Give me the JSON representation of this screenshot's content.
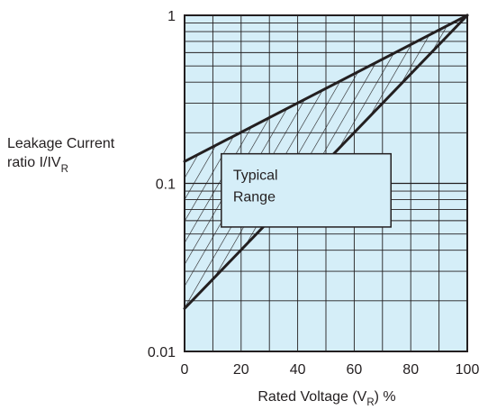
{
  "chart_data": {
    "type": "area",
    "y_scale": "log",
    "xlim": [
      0,
      100
    ],
    "ylim": [
      0.01,
      1
    ],
    "x_ticks": [
      0,
      20,
      40,
      60,
      80,
      100
    ],
    "x_tick_labels": [
      "0",
      "20",
      "40",
      "60",
      "80",
      "100"
    ],
    "y_ticks": [
      0.01,
      0.1,
      1
    ],
    "y_tick_labels": [
      "0.01",
      "0.1",
      "1"
    ],
    "xlabel": {
      "main": "Rated Voltage (V",
      "sub": "R",
      "tail": ") %"
    },
    "ylabel": {
      "line1": "Leakage Current",
      "line2_main": "ratio I/IV",
      "line2_sub": "R"
    },
    "grid": true,
    "plot_background": "#d5eef8",
    "series": [
      {
        "x": [
          0,
          100
        ],
        "y": [
          0.135,
          1.0
        ]
      },
      {
        "x": [
          0,
          100
        ],
        "y": [
          0.018,
          1.0
        ]
      }
    ],
    "band_fill": "hatched",
    "annotation": {
      "line1": "Typical",
      "line2": "Range",
      "x0": 13,
      "x1": 73,
      "y_top": 0.15,
      "y_bottom": 0.055
    }
  },
  "colors": {
    "axis": "#231f20",
    "grid": "#231f20",
    "plot_background": "#d5eef8",
    "label_box": "#d5eef8"
  }
}
